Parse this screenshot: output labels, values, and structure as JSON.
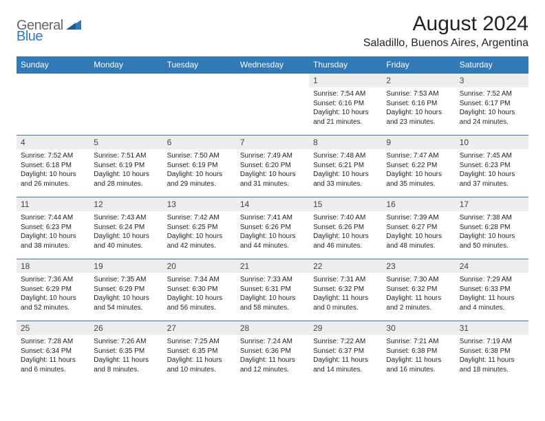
{
  "logo": {
    "text1": "General",
    "text2": "Blue",
    "color1": "#666666",
    "color2": "#3179b7"
  },
  "header": {
    "title": "August 2024",
    "location": "Saladillo, Buenos Aires, Argentina"
  },
  "colors": {
    "accent": "#3179b7",
    "header_row_bg": "#3179b7",
    "header_row_text": "#ffffff",
    "daynum_bg": "#ededed",
    "border": "#3179b7",
    "background": "#ffffff"
  },
  "fonts": {
    "title_size": 30,
    "location_size": 16,
    "header_size": 12,
    "daynum_size": 12,
    "body_size": 10
  },
  "calendar": {
    "columns": [
      "Sunday",
      "Monday",
      "Tuesday",
      "Wednesday",
      "Thursday",
      "Friday",
      "Saturday"
    ],
    "weeks": [
      [
        null,
        null,
        null,
        null,
        {
          "day": "1",
          "sunrise": "7:54 AM",
          "sunset": "6:16 PM",
          "daylight": "10 hours and 21 minutes."
        },
        {
          "day": "2",
          "sunrise": "7:53 AM",
          "sunset": "6:16 PM",
          "daylight": "10 hours and 23 minutes."
        },
        {
          "day": "3",
          "sunrise": "7:52 AM",
          "sunset": "6:17 PM",
          "daylight": "10 hours and 24 minutes."
        }
      ],
      [
        {
          "day": "4",
          "sunrise": "7:52 AM",
          "sunset": "6:18 PM",
          "daylight": "10 hours and 26 minutes."
        },
        {
          "day": "5",
          "sunrise": "7:51 AM",
          "sunset": "6:19 PM",
          "daylight": "10 hours and 28 minutes."
        },
        {
          "day": "6",
          "sunrise": "7:50 AM",
          "sunset": "6:19 PM",
          "daylight": "10 hours and 29 minutes."
        },
        {
          "day": "7",
          "sunrise": "7:49 AM",
          "sunset": "6:20 PM",
          "daylight": "10 hours and 31 minutes."
        },
        {
          "day": "8",
          "sunrise": "7:48 AM",
          "sunset": "6:21 PM",
          "daylight": "10 hours and 33 minutes."
        },
        {
          "day": "9",
          "sunrise": "7:47 AM",
          "sunset": "6:22 PM",
          "daylight": "10 hours and 35 minutes."
        },
        {
          "day": "10",
          "sunrise": "7:45 AM",
          "sunset": "6:23 PM",
          "daylight": "10 hours and 37 minutes."
        }
      ],
      [
        {
          "day": "11",
          "sunrise": "7:44 AM",
          "sunset": "6:23 PM",
          "daylight": "10 hours and 38 minutes."
        },
        {
          "day": "12",
          "sunrise": "7:43 AM",
          "sunset": "6:24 PM",
          "daylight": "10 hours and 40 minutes."
        },
        {
          "day": "13",
          "sunrise": "7:42 AM",
          "sunset": "6:25 PM",
          "daylight": "10 hours and 42 minutes."
        },
        {
          "day": "14",
          "sunrise": "7:41 AM",
          "sunset": "6:26 PM",
          "daylight": "10 hours and 44 minutes."
        },
        {
          "day": "15",
          "sunrise": "7:40 AM",
          "sunset": "6:26 PM",
          "daylight": "10 hours and 46 minutes."
        },
        {
          "day": "16",
          "sunrise": "7:39 AM",
          "sunset": "6:27 PM",
          "daylight": "10 hours and 48 minutes."
        },
        {
          "day": "17",
          "sunrise": "7:38 AM",
          "sunset": "6:28 PM",
          "daylight": "10 hours and 50 minutes."
        }
      ],
      [
        {
          "day": "18",
          "sunrise": "7:36 AM",
          "sunset": "6:29 PM",
          "daylight": "10 hours and 52 minutes."
        },
        {
          "day": "19",
          "sunrise": "7:35 AM",
          "sunset": "6:29 PM",
          "daylight": "10 hours and 54 minutes."
        },
        {
          "day": "20",
          "sunrise": "7:34 AM",
          "sunset": "6:30 PM",
          "daylight": "10 hours and 56 minutes."
        },
        {
          "day": "21",
          "sunrise": "7:33 AM",
          "sunset": "6:31 PM",
          "daylight": "10 hours and 58 minutes."
        },
        {
          "day": "22",
          "sunrise": "7:31 AM",
          "sunset": "6:32 PM",
          "daylight": "11 hours and 0 minutes."
        },
        {
          "day": "23",
          "sunrise": "7:30 AM",
          "sunset": "6:32 PM",
          "daylight": "11 hours and 2 minutes."
        },
        {
          "day": "24",
          "sunrise": "7:29 AM",
          "sunset": "6:33 PM",
          "daylight": "11 hours and 4 minutes."
        }
      ],
      [
        {
          "day": "25",
          "sunrise": "7:28 AM",
          "sunset": "6:34 PM",
          "daylight": "11 hours and 6 minutes."
        },
        {
          "day": "26",
          "sunrise": "7:26 AM",
          "sunset": "6:35 PM",
          "daylight": "11 hours and 8 minutes."
        },
        {
          "day": "27",
          "sunrise": "7:25 AM",
          "sunset": "6:35 PM",
          "daylight": "11 hours and 10 minutes."
        },
        {
          "day": "28",
          "sunrise": "7:24 AM",
          "sunset": "6:36 PM",
          "daylight": "11 hours and 12 minutes."
        },
        {
          "day": "29",
          "sunrise": "7:22 AM",
          "sunset": "6:37 PM",
          "daylight": "11 hours and 14 minutes."
        },
        {
          "day": "30",
          "sunrise": "7:21 AM",
          "sunset": "6:38 PM",
          "daylight": "11 hours and 16 minutes."
        },
        {
          "day": "31",
          "sunrise": "7:19 AM",
          "sunset": "6:38 PM",
          "daylight": "11 hours and 18 minutes."
        }
      ]
    ],
    "labels": {
      "sunrise": "Sunrise:",
      "sunset": "Sunset:",
      "daylight": "Daylight:"
    }
  }
}
